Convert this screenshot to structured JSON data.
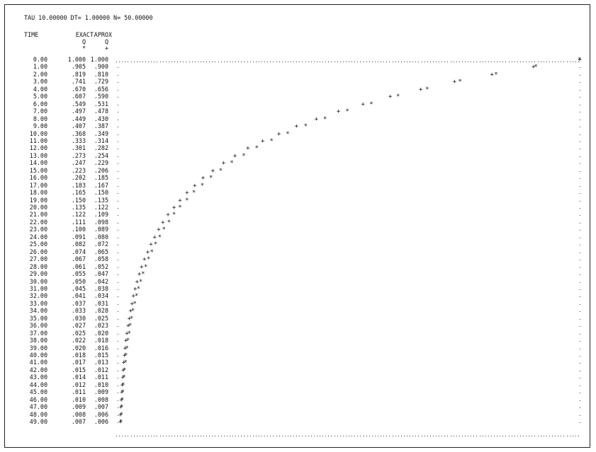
{
  "header": "TAU 10.00000 DT= 1.00000 N= 50.00000",
  "columns": {
    "time": "TIME",
    "exact": "EXACT",
    "aprox": "APROX",
    "exact_var": "Q",
    "aprox_var": "Q",
    "exact_sym": "*",
    "aprox_sym": "+"
  },
  "rows": [
    {
      "t": "0.00",
      "exact": "1.000",
      "aprox": "1.000"
    },
    {
      "t": "1.00",
      "exact": ".905",
      "aprox": ".900"
    },
    {
      "t": "2.00",
      "exact": ".819",
      "aprox": ".810"
    },
    {
      "t": "3.00",
      "exact": ".741",
      "aprox": ".729"
    },
    {
      "t": "4.00",
      "exact": ".670",
      "aprox": ".656"
    },
    {
      "t": "5.00",
      "exact": ".607",
      "aprox": ".590"
    },
    {
      "t": "6.00",
      "exact": ".549",
      "aprox": ".531"
    },
    {
      "t": "7.00",
      "exact": ".497",
      "aprox": ".478"
    },
    {
      "t": "8.00",
      "exact": ".449",
      "aprox": ".430"
    },
    {
      "t": "9.00",
      "exact": ".407",
      "aprox": ".387"
    },
    {
      "t": "10.00",
      "exact": ".368",
      "aprox": ".349"
    },
    {
      "t": "11.00",
      "exact": ".333",
      "aprox": ".314"
    },
    {
      "t": "12.00",
      "exact": ".301",
      "aprox": ".282"
    },
    {
      "t": "13.00",
      "exact": ".273",
      "aprox": ".254"
    },
    {
      "t": "14.00",
      "exact": ".247",
      "aprox": ".229"
    },
    {
      "t": "15.00",
      "exact": ".223",
      "aprox": ".206"
    },
    {
      "t": "16.00",
      "exact": ".202",
      "aprox": ".185"
    },
    {
      "t": "17.00",
      "exact": ".183",
      "aprox": ".167"
    },
    {
      "t": "18.00",
      "exact": ".165",
      "aprox": ".150"
    },
    {
      "t": "19.00",
      "exact": ".150",
      "aprox": ".135"
    },
    {
      "t": "20.00",
      "exact": ".135",
      "aprox": ".122"
    },
    {
      "t": "21.00",
      "exact": ".122",
      "aprox": ".109"
    },
    {
      "t": "22.00",
      "exact": ".111",
      "aprox": ".098"
    },
    {
      "t": "23.00",
      "exact": ".100",
      "aprox": ".089"
    },
    {
      "t": "24.00",
      "exact": ".091",
      "aprox": ".080"
    },
    {
      "t": "25.00",
      "exact": ".082",
      "aprox": ".072"
    },
    {
      "t": "26.00",
      "exact": ".074",
      "aprox": ".065"
    },
    {
      "t": "27.00",
      "exact": ".067",
      "aprox": ".058"
    },
    {
      "t": "28.00",
      "exact": ".061",
      "aprox": ".052"
    },
    {
      "t": "29.00",
      "exact": ".055",
      "aprox": ".047"
    },
    {
      "t": "30.00",
      "exact": ".050",
      "aprox": ".042"
    },
    {
      "t": "31.00",
      "exact": ".045",
      "aprox": ".038"
    },
    {
      "t": "32.00",
      "exact": ".041",
      "aprox": ".034"
    },
    {
      "t": "33.00",
      "exact": ".037",
      "aprox": ".031"
    },
    {
      "t": "34.00",
      "exact": ".033",
      "aprox": ".028"
    },
    {
      "t": "35.00",
      "exact": ".030",
      "aprox": ".025"
    },
    {
      "t": "36.00",
      "exact": ".027",
      "aprox": ".023"
    },
    {
      "t": "37.00",
      "exact": ".025",
      "aprox": ".020"
    },
    {
      "t": "38.00",
      "exact": ".022",
      "aprox": ".018"
    },
    {
      "t": "39.00",
      "exact": ".020",
      "aprox": ".016"
    },
    {
      "t": "40.00",
      "exact": ".018",
      "aprox": ".015"
    },
    {
      "t": "41.00",
      "exact": ".017",
      "aprox": ".013"
    },
    {
      "t": "42.00",
      "exact": ".015",
      "aprox": ".012"
    },
    {
      "t": "43.00",
      "exact": ".014",
      "aprox": ".011"
    },
    {
      "t": "44.00",
      "exact": ".012",
      "aprox": ".010"
    },
    {
      "t": "45.00",
      "exact": ".011",
      "aprox": ".009"
    },
    {
      "t": "46.00",
      "exact": ".010",
      "aprox": ".008"
    },
    {
      "t": "47.00",
      "exact": ".009",
      "aprox": ".007"
    },
    {
      "t": "48.00",
      "exact": ".008",
      "aprox": ".006"
    },
    {
      "t": "49.00",
      "exact": ".007",
      "aprox": ".006"
    }
  ],
  "chart_data": {
    "type": "scatter",
    "x": [
      0,
      1,
      2,
      3,
      4,
      5,
      6,
      7,
      8,
      9,
      10,
      11,
      12,
      13,
      14,
      15,
      16,
      17,
      18,
      19,
      20,
      21,
      22,
      23,
      24,
      25,
      26,
      27,
      28,
      29,
      30,
      31,
      32,
      33,
      34,
      35,
      36,
      37,
      38,
      39,
      40,
      41,
      42,
      43,
      44,
      45,
      46,
      47,
      48,
      49
    ],
    "series": [
      {
        "name": "EXACT",
        "symbol": "*",
        "values": [
          1.0,
          0.905,
          0.819,
          0.741,
          0.67,
          0.607,
          0.549,
          0.497,
          0.449,
          0.407,
          0.368,
          0.333,
          0.301,
          0.273,
          0.247,
          0.223,
          0.202,
          0.183,
          0.165,
          0.15,
          0.135,
          0.122,
          0.111,
          0.1,
          0.091,
          0.082,
          0.074,
          0.067,
          0.061,
          0.055,
          0.05,
          0.045,
          0.041,
          0.037,
          0.033,
          0.03,
          0.027,
          0.025,
          0.022,
          0.02,
          0.018,
          0.017,
          0.015,
          0.014,
          0.012,
          0.011,
          0.01,
          0.009,
          0.008,
          0.007
        ]
      },
      {
        "name": "APROX",
        "symbol": "+",
        "values": [
          1.0,
          0.9,
          0.81,
          0.729,
          0.656,
          0.59,
          0.531,
          0.478,
          0.43,
          0.387,
          0.349,
          0.314,
          0.282,
          0.254,
          0.229,
          0.206,
          0.185,
          0.167,
          0.15,
          0.135,
          0.122,
          0.109,
          0.098,
          0.089,
          0.08,
          0.072,
          0.065,
          0.058,
          0.052,
          0.047,
          0.042,
          0.038,
          0.034,
          0.031,
          0.028,
          0.025,
          0.023,
          0.02,
          0.018,
          0.016,
          0.015,
          0.013,
          0.012,
          0.011,
          0.01,
          0.009,
          0.008,
          0.007,
          0.006,
          0.006
        ]
      }
    ],
    "xlim": [
      0,
      49
    ],
    "ylim": [
      0,
      1
    ],
    "orientation": "value horizontal, time vertical (line-printer plot)",
    "grid": false,
    "frame": "dotted"
  }
}
